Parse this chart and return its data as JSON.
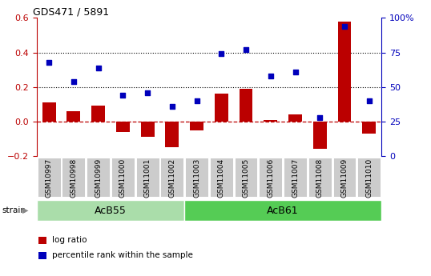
{
  "title": "GDS471 / 5891",
  "samples": [
    "GSM10997",
    "GSM10998",
    "GSM10999",
    "GSM11000",
    "GSM11001",
    "GSM11002",
    "GSM11003",
    "GSM11004",
    "GSM11005",
    "GSM11006",
    "GSM11007",
    "GSM11008",
    "GSM11009",
    "GSM11010"
  ],
  "log_ratio": [
    0.11,
    0.06,
    0.09,
    -0.06,
    -0.09,
    -0.15,
    -0.05,
    0.16,
    0.19,
    0.01,
    0.04,
    -0.16,
    0.58,
    -0.07
  ],
  "percentile_rank": [
    68,
    54,
    64,
    44,
    46,
    36,
    40,
    74,
    77,
    58,
    61,
    28,
    94,
    40
  ],
  "bar_color": "#bb0000",
  "dot_color": "#0000bb",
  "ylim_left": [
    -0.2,
    0.6
  ],
  "ylim_right": [
    0,
    100
  ],
  "yticks_left": [
    -0.2,
    0.0,
    0.2,
    0.4,
    0.6
  ],
  "yticks_right": [
    0,
    25,
    50,
    75,
    100
  ],
  "yticklabels_right": [
    "0",
    "25",
    "50",
    "75",
    "100%"
  ],
  "hlines": [
    0.2,
    0.4
  ],
  "zero_line_color": "#bb0000",
  "hline_color": "black",
  "groups": [
    {
      "label": "AcB55",
      "start": 0,
      "end": 5,
      "color": "#aaddaa"
    },
    {
      "label": "AcB61",
      "start": 6,
      "end": 13,
      "color": "#55cc55"
    }
  ],
  "legend_items": [
    {
      "label": "log ratio",
      "color": "#bb0000"
    },
    {
      "label": "percentile rank within the sample",
      "color": "#0000bb"
    }
  ],
  "bar_width": 0.55
}
